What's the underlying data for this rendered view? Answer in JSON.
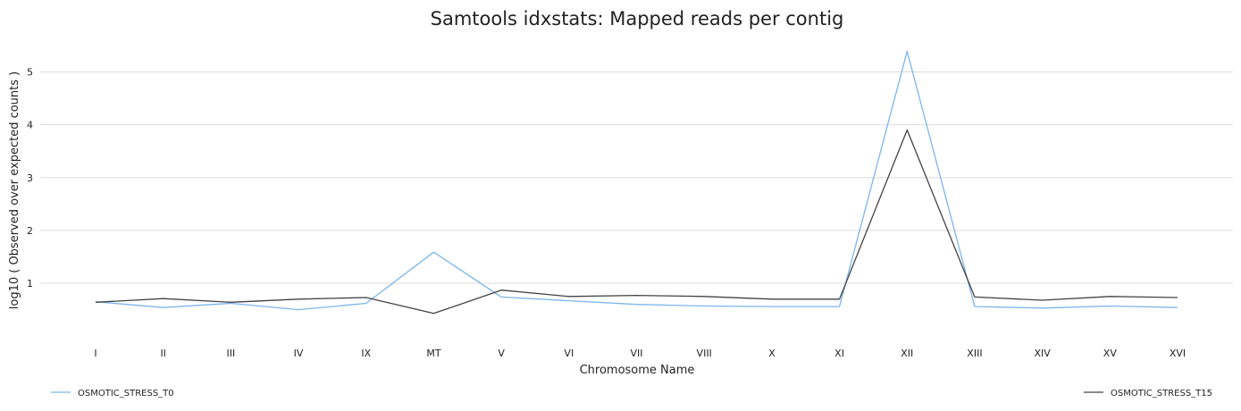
{
  "chart_data": {
    "type": "line",
    "title": "Samtools idxstats: Mapped reads per contig",
    "xlabel": "Chromosome Name",
    "ylabel": "log10 ( Observed over expected counts )",
    "categories": [
      "I",
      "II",
      "III",
      "IV",
      "IX",
      "MT",
      "V",
      "VI",
      "VII",
      "VIII",
      "X",
      "XI",
      "XII",
      "XIII",
      "XIV",
      "XV",
      "XVI"
    ],
    "ylim": [
      0.02,
      5.6
    ],
    "yticks": [
      1,
      2,
      3,
      4,
      5
    ],
    "grid": true,
    "series": [
      {
        "name": "OSMOTIC_STRESS_T0",
        "color": "#7cb5ec",
        "legend_position": "bottom-left",
        "values": [
          0.65,
          0.54,
          0.62,
          0.5,
          0.62,
          1.59,
          0.74,
          0.67,
          0.6,
          0.57,
          0.56,
          0.56,
          5.39,
          0.56,
          0.53,
          0.57,
          0.54
        ]
      },
      {
        "name": "OSMOTIC_STRESS_T15",
        "color": "#434348",
        "legend_position": "bottom-right",
        "values": [
          0.64,
          0.71,
          0.64,
          0.7,
          0.73,
          0.43,
          0.87,
          0.75,
          0.77,
          0.75,
          0.7,
          0.7,
          3.9,
          0.74,
          0.68,
          0.75,
          0.73
        ]
      }
    ]
  }
}
